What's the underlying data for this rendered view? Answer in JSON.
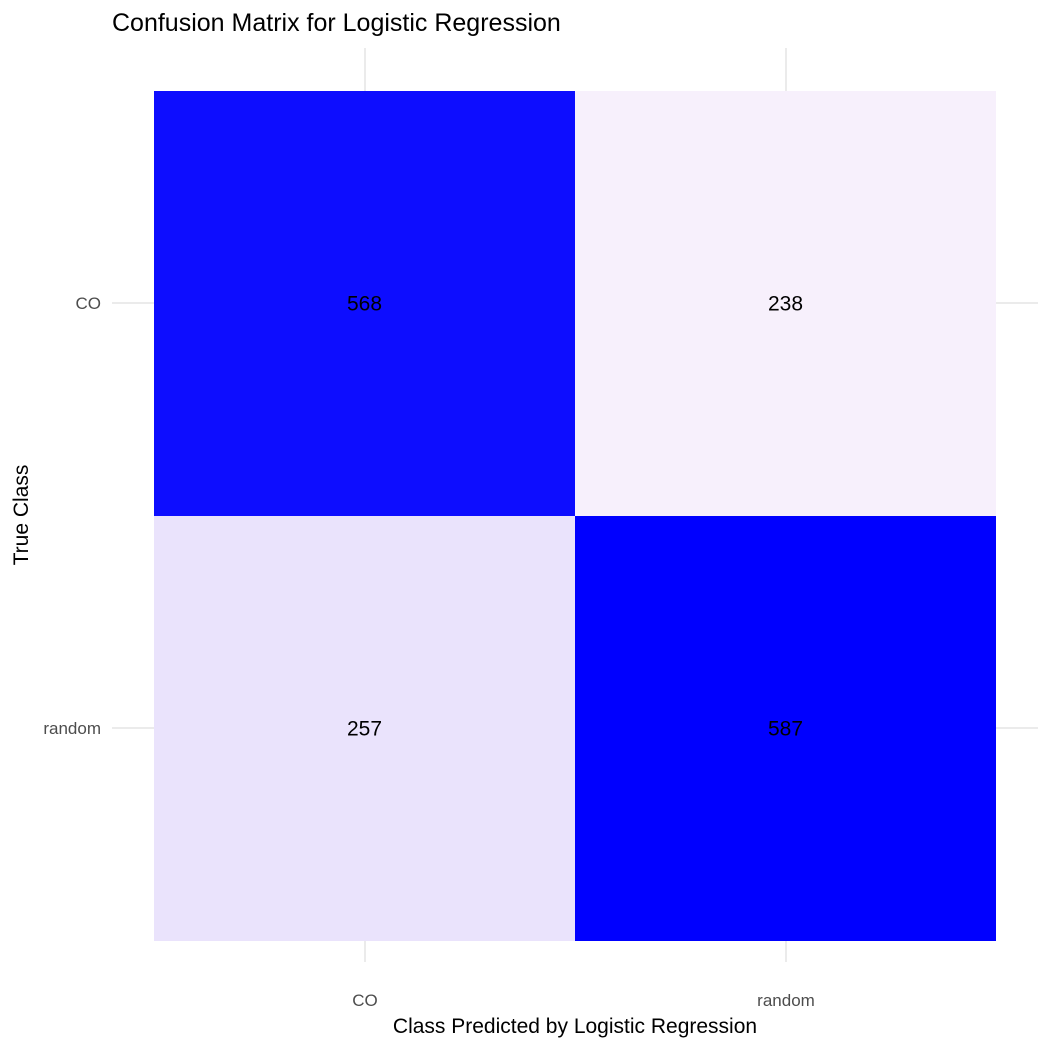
{
  "chart_data": {
    "type": "heatmap",
    "title": "Confusion Matrix for Logistic Regression",
    "xlabel": "Class Predicted by Logistic Regression",
    "ylabel": "True Class",
    "x_categories": [
      "CO",
      "random"
    ],
    "y_categories": [
      "CO",
      "random"
    ],
    "cells": [
      {
        "true": "CO",
        "predicted": "CO",
        "value": 568
      },
      {
        "true": "CO",
        "predicted": "random",
        "value": 238
      },
      {
        "true": "random",
        "predicted": "CO",
        "value": 257
      },
      {
        "true": "random",
        "predicted": "random",
        "value": 587
      }
    ],
    "color_low": "#f7f0fc",
    "color_high": "#0000ff",
    "grid": true,
    "legend": "none"
  }
}
